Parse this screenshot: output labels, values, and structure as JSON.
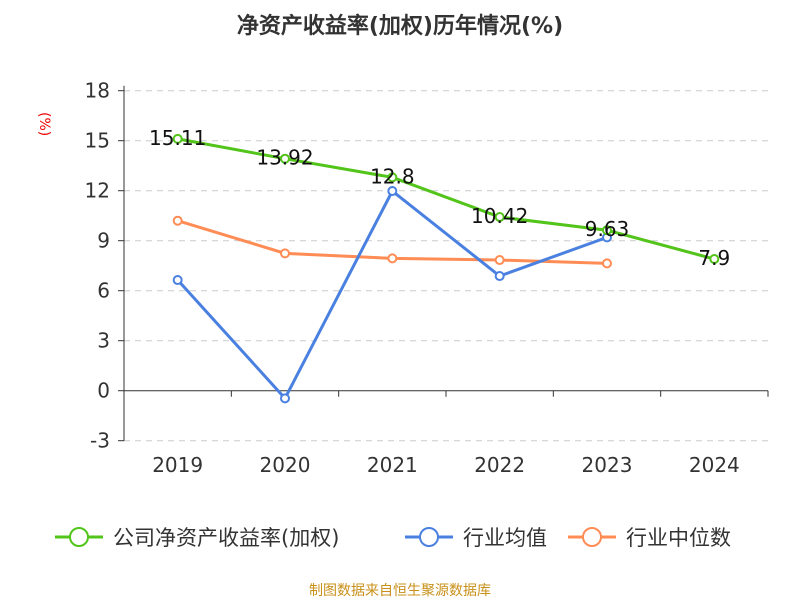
{
  "chart_data": {
    "type": "line",
    "title": "净资产收益率(加权)历年情况(%)",
    "ylabel": "(%)",
    "categories": [
      "2019",
      "2020",
      "2021",
      "2022",
      "2023",
      "2024"
    ],
    "ylim": [
      -3,
      18
    ],
    "yticks": [
      -3,
      0,
      3,
      6,
      9,
      12,
      15,
      18
    ],
    "grid": true,
    "legend_position": "bottom",
    "series": [
      {
        "name": "公司净资产收益率(加权)",
        "color": "#52c41a",
        "values": [
          15.11,
          13.92,
          12.8,
          10.42,
          9.63,
          7.9
        ],
        "labels": [
          "15.11",
          "13.92",
          "12.8",
          "10.42",
          "9.63",
          "7.9"
        ]
      },
      {
        "name": "行业均值",
        "color": "#4a80e0",
        "values": [
          6.64,
          -0.46,
          11.98,
          6.88,
          9.2,
          null
        ]
      },
      {
        "name": "行业中位数",
        "color": "#ff8c55",
        "values": [
          10.2,
          8.24,
          7.94,
          7.84,
          7.64,
          null
        ]
      }
    ]
  },
  "footer": "制图数据来自恒生聚源数据库"
}
